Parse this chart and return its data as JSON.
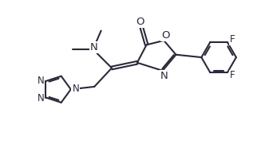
{
  "bg_color": "#ffffff",
  "line_color": "#2a2a3a",
  "line_width": 1.5,
  "font_size": 8.5,
  "fig_width": 3.37,
  "fig_height": 1.81,
  "dpi": 100,
  "xlim": [
    0,
    10
  ],
  "ylim": [
    0,
    5.4
  ]
}
